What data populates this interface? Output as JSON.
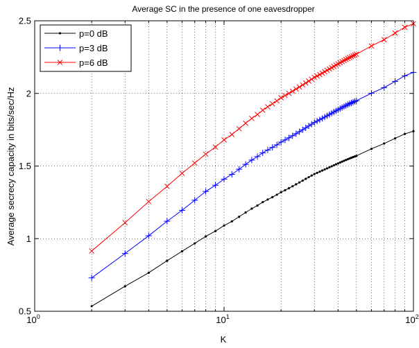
{
  "chart_data": {
    "type": "line",
    "title": "Average SC in the presence of one eavesdropper",
    "xlabel": "K",
    "ylabel": "Average secrecy capacity in bits/sec/Hz",
    "xscale": "log",
    "xlim": [
      1,
      100
    ],
    "ylim": [
      0.5,
      2.5
    ],
    "x_ticks": [
      {
        "value": 1,
        "base": "10",
        "exp": "0"
      },
      {
        "value": 10,
        "base": "10",
        "exp": "1"
      },
      {
        "value": 100,
        "base": "10",
        "exp": "2"
      }
    ],
    "y_ticks": [
      {
        "value": 0.5,
        "label": "0.5"
      },
      {
        "value": 1.0,
        "label": "1"
      },
      {
        "value": 1.5,
        "label": "1.5"
      },
      {
        "value": 2.0,
        "label": "2"
      },
      {
        "value": 2.5,
        "label": "2.5"
      }
    ],
    "grid": true,
    "grid_style": "dotted",
    "legend_position": "top-left",
    "series": [
      {
        "name": "p=0 dB",
        "color": "#000000",
        "marker": "dot",
        "x_dense": [
          2,
          3,
          4,
          5,
          6,
          7,
          8,
          9,
          10,
          11,
          12,
          13,
          14,
          15,
          16,
          17,
          18,
          19,
          20,
          21,
          22,
          23,
          24,
          25,
          26,
          27,
          28,
          29,
          30,
          31,
          32,
          33,
          34,
          35,
          36,
          37,
          38,
          39,
          40,
          41,
          42,
          43,
          44,
          45,
          46,
          47,
          48,
          49,
          50
        ],
        "x_sparse": [
          60,
          70,
          80,
          90,
          100
        ],
        "y_anchor_x": [
          2,
          3,
          4,
          5,
          6,
          8,
          10,
          15,
          20,
          30,
          50,
          70,
          100
        ],
        "y_anchor_values": [
          0.535,
          0.672,
          0.765,
          0.848,
          0.913,
          1.015,
          1.09,
          1.228,
          1.32,
          1.445,
          1.57,
          1.655,
          1.74
        ]
      },
      {
        "name": "p=3 dB",
        "color": "#0000ff",
        "marker": "plus",
        "x_dense": [
          2,
          3,
          4,
          5,
          6,
          7,
          8,
          9,
          10,
          11,
          12,
          13,
          14,
          15,
          16,
          17,
          18,
          19,
          20,
          21,
          22,
          23,
          24,
          25,
          26,
          27,
          28,
          29,
          30,
          31,
          32,
          33,
          34,
          35,
          36,
          37,
          38,
          39,
          40,
          41,
          42,
          43,
          44,
          45,
          46,
          47,
          48,
          49,
          50
        ],
        "x_sparse": [
          60,
          70,
          80,
          90,
          100
        ],
        "y_anchor_x": [
          2,
          3,
          4,
          5,
          6,
          8,
          10,
          15,
          20,
          30,
          50,
          70,
          100
        ],
        "y_anchor_values": [
          0.73,
          0.898,
          1.02,
          1.12,
          1.195,
          1.325,
          1.41,
          1.565,
          1.665,
          1.8,
          1.95,
          2.04,
          2.145
        ]
      },
      {
        "name": "p=6 dB",
        "color": "#ff0000",
        "marker": "x",
        "x_dense": [
          2,
          3,
          4,
          5,
          6,
          7,
          8,
          9,
          10,
          11,
          12,
          13,
          14,
          15,
          16,
          17,
          18,
          19,
          20,
          21,
          22,
          23,
          24,
          25,
          26,
          27,
          28,
          29,
          30,
          31,
          32,
          33,
          34,
          35,
          36,
          37,
          38,
          39,
          40,
          41,
          42,
          43,
          44,
          45,
          46,
          47,
          48,
          49,
          50
        ],
        "x_sparse": [
          60,
          70,
          80,
          90,
          100
        ],
        "y_anchor_x": [
          2,
          3,
          4,
          5,
          6,
          8,
          10,
          15,
          20,
          30,
          50,
          70,
          100
        ],
        "y_anchor_values": [
          0.915,
          1.11,
          1.255,
          1.36,
          1.45,
          1.582,
          1.68,
          1.855,
          1.97,
          2.11,
          2.27,
          2.37,
          2.48
        ]
      }
    ]
  }
}
